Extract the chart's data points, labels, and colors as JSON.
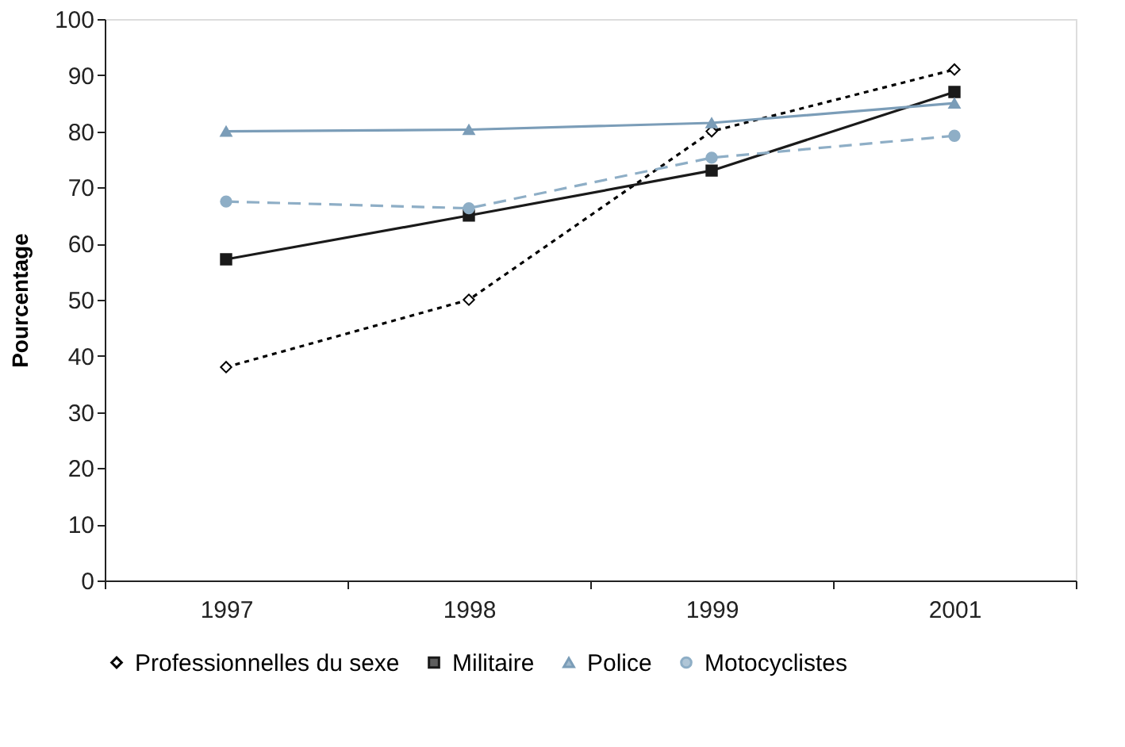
{
  "chart_data": {
    "type": "line",
    "ylabel": "Pourcentage",
    "categories": [
      "1997",
      "1998",
      "1999",
      "2001"
    ],
    "series": [
      {
        "name": "Professionnelles du sexe",
        "color": "#000000",
        "marker": "diamond",
        "line_style": "dotted",
        "values": [
          38,
          50,
          80,
          91
        ]
      },
      {
        "name": "Militaire",
        "color": "#1a1a1a",
        "marker": "square",
        "line_style": "solid",
        "values": [
          57.2,
          65,
          73,
          87
        ]
      },
      {
        "name": "Police",
        "color": "#7b9db8",
        "marker": "triangle",
        "line_style": "solid",
        "values": [
          80,
          80.3,
          81.5,
          85
        ]
      },
      {
        "name": "Motocyclistes",
        "color": "#8eaec6",
        "marker": "circle",
        "line_style": "dashed",
        "values": [
          67.5,
          66.3,
          75.3,
          79.2
        ]
      }
    ],
    "ylim": [
      0,
      100
    ],
    "yticks": [
      0,
      10,
      20,
      30,
      40,
      50,
      60,
      70,
      80,
      90,
      100
    ],
    "grid": false,
    "legend": "bottom"
  }
}
